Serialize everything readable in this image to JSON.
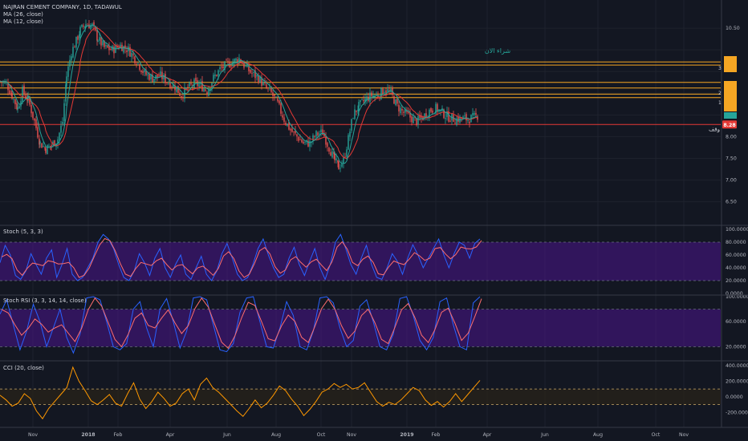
{
  "header": {
    "symbol_line": "NAJRAN CEMENT COMPANY, 1D, TADAWUL",
    "ma1": "MA (26, close)",
    "ma2": "MA (12, close)"
  },
  "annotations": {
    "buy_text": "شراء الان",
    "stop_text": "وقف",
    "price_badge": "8.28",
    "levels": [
      "3",
      "2",
      "1"
    ]
  },
  "colors": {
    "background": "#131722",
    "candle_up": "#26a69a",
    "candle_down": "#ef5350",
    "ma26": "#e53935",
    "ma12": "#26a69a",
    "orange": "#f5a623",
    "red_line": "#e53935",
    "stoch_k": "#2962ff",
    "stoch_d": "#ff6d6d",
    "band": "#4a148c",
    "cci": "#ff9800",
    "green_text": "#26a69a"
  },
  "chart_data": [
    {
      "type": "candlestick",
      "title": "NAJRAN CEMENT COMPANY, 1D, TADAWUL",
      "yticks": [
        6.5,
        7.0,
        7.5,
        8.0,
        8.5,
        9.0,
        9.5,
        10.0,
        10.5
      ],
      "ytick_labels": [
        "6.50",
        "7.00",
        "7.50",
        "8.00",
        "",
        "",
        "",
        "",
        "10.50"
      ],
      "ylim": [
        6.05,
        11.0
      ],
      "last_price": 8.28,
      "xticks": [
        "Nov",
        "2018",
        "Feb",
        "Apr",
        "Jun",
        "Aug",
        "Oct",
        "Nov",
        "2019",
        "Feb",
        "Apr",
        "Jun",
        "Aug",
        "Oct",
        "Nov"
      ],
      "horizontal_lines": [
        {
          "price": 9.72,
          "color": "orange"
        },
        {
          "price": 9.65,
          "color": "orange"
        },
        {
          "price": 9.25,
          "color": "orange"
        },
        {
          "price": 9.12,
          "color": "orange"
        },
        {
          "price": 8.98,
          "color": "orange"
        },
        {
          "price": 8.9,
          "color": "orange"
        },
        {
          "price": 8.28,
          "color": "red"
        }
      ],
      "series": [
        {
          "name": "price",
          "anchors": [
            [
              0,
              9.28
            ],
            [
              8,
              9.22
            ],
            [
              15,
              8.95
            ],
            [
              22,
              8.65
            ],
            [
              28,
              9.05
            ],
            [
              35,
              8.85
            ],
            [
              43,
              8.35
            ],
            [
              50,
              7.85
            ],
            [
              57,
              7.72
            ],
            [
              64,
              7.8
            ],
            [
              72,
              7.95
            ],
            [
              78,
              8.35
            ],
            [
              83,
              9.4
            ],
            [
              89,
              9.95
            ],
            [
              95,
              10.2
            ],
            [
              100,
              10.45
            ],
            [
              107,
              10.6
            ],
            [
              115,
              10.55
            ],
            [
              122,
              10.25
            ],
            [
              130,
              10.05
            ],
            [
              140,
              10.0
            ],
            [
              150,
              10.1
            ],
            [
              160,
              10.0
            ],
            [
              170,
              9.75
            ],
            [
              180,
              9.45
            ],
            [
              190,
              9.35
            ],
            [
              200,
              9.4
            ],
            [
              210,
              9.25
            ],
            [
              218,
              9.15
            ],
            [
              226,
              8.95
            ],
            [
              234,
              9.12
            ],
            [
              242,
              9.22
            ],
            [
              250,
              9.18
            ],
            [
              258,
              9.05
            ],
            [
              266,
              9.35
            ],
            [
              274,
              9.55
            ],
            [
              282,
              9.65
            ],
            [
              290,
              9.72
            ],
            [
              298,
              9.8
            ],
            [
              306,
              9.6
            ],
            [
              314,
              9.45
            ],
            [
              322,
              9.35
            ],
            [
              330,
              9.15
            ],
            [
              338,
              9.0
            ],
            [
              346,
              8.75
            ],
            [
              354,
              8.4
            ],
            [
              362,
              8.15
            ],
            [
              370,
              8.0
            ],
            [
              378,
              7.85
            ],
            [
              386,
              7.85
            ],
            [
              394,
              8.05
            ],
            [
              402,
              8.1
            ],
            [
              410,
              7.75
            ],
            [
              417,
              7.45
            ],
            [
              422,
              7.3
            ],
            [
              428,
              7.45
            ],
            [
              434,
              7.95
            ],
            [
              440,
              8.5
            ],
            [
              447,
              8.7
            ],
            [
              455,
              8.85
            ],
            [
              463,
              8.95
            ],
            [
              471,
              8.95
            ],
            [
              479,
              9.1
            ],
            [
              487,
              9.0
            ],
            [
              495,
              8.7
            ],
            [
              503,
              8.55
            ],
            [
              511,
              8.45
            ],
            [
              519,
              8.35
            ],
            [
              527,
              8.45
            ],
            [
              535,
              8.6
            ],
            [
              543,
              8.65
            ],
            [
              551,
              8.55
            ],
            [
              559,
              8.45
            ],
            [
              567,
              8.4
            ],
            [
              575,
              8.42
            ],
            [
              583,
              8.4
            ],
            [
              591,
              8.45
            ],
            [
              597,
              8.5
            ]
          ]
        },
        {
          "name": "MA (26, close)",
          "type": "line"
        },
        {
          "name": "MA (12, close)",
          "type": "line"
        }
      ]
    },
    {
      "type": "line",
      "title": "Stoch (5, 3, 3)",
      "ylim": [
        0,
        100
      ],
      "yticks": [
        0,
        20,
        40,
        60,
        80,
        100
      ],
      "ytick_labels": [
        "0.0000",
        "20.0000",
        "40.0000",
        "60.0000",
        "80.0000",
        "100.0000"
      ],
      "band": [
        20,
        80
      ],
      "series": [
        {
          "name": "%K",
          "values": [
            48,
            75,
            60,
            28,
            22,
            35,
            62,
            45,
            30,
            55,
            68,
            25,
            45,
            70,
            30,
            20,
            25,
            40,
            55,
            80,
            92,
            85,
            70,
            45,
            25,
            20,
            35,
            62,
            48,
            28,
            55,
            70,
            40,
            25,
            45,
            60,
            30,
            22,
            40,
            58,
            30,
            20,
            35,
            62,
            78,
            55,
            30,
            20,
            25,
            45,
            70,
            85,
            60,
            40,
            25,
            30,
            55,
            72,
            45,
            28,
            50,
            70,
            40,
            22,
            45,
            80,
            92,
            70,
            45,
            30,
            55,
            75,
            45,
            25,
            22,
            40,
            62,
            50,
            30,
            55,
            76,
            60,
            40,
            55,
            70,
            85,
            60,
            40,
            62,
            80,
            75,
            55,
            78,
            85
          ]
        },
        {
          "name": "%D"
        }
      ]
    },
    {
      "type": "line",
      "title": "Stoch RSI (3, 3, 14, 14, close)",
      "ylim": [
        0,
        100
      ],
      "yticks": [
        20,
        60,
        100
      ],
      "ytick_labels": [
        "20.0000",
        "60.0000",
        "100.0000"
      ],
      "band": [
        20,
        80
      ],
      "series": [
        {
          "name": "K",
          "values": [
            72,
            95,
            55,
            15,
            45,
            88,
            60,
            20,
            50,
            80,
            35,
            10,
            40,
            98,
            100,
            95,
            60,
            20,
            15,
            25,
            80,
            92,
            50,
            20,
            80,
            97,
            60,
            18,
            45,
            98,
            100,
            95,
            55,
            15,
            12,
            25,
            75,
            98,
            100,
            60,
            20,
            18,
            50,
            92,
            70,
            20,
            15,
            45,
            98,
            100,
            90,
            50,
            20,
            30,
            85,
            95,
            60,
            20,
            15,
            40,
            97,
            100,
            70,
            30,
            15,
            35,
            92,
            98,
            55,
            20,
            15,
            90,
            100
          ]
        },
        {
          "name": "D"
        }
      ]
    },
    {
      "type": "line",
      "title": "CCI (20, close)",
      "ylim": [
        -360,
        440
      ],
      "yticks": [
        -200,
        0,
        200,
        400
      ],
      "ytick_labels": [
        "-200.0000",
        "0.0000",
        "200.0000",
        "400.0000"
      ],
      "band": [
        -100,
        100
      ],
      "series": [
        {
          "name": "CCI",
          "values": [
            20,
            -40,
            -120,
            -80,
            40,
            -20,
            -180,
            -280,
            -150,
            -60,
            30,
            120,
            380,
            200,
            80,
            -50,
            -100,
            -40,
            30,
            -80,
            -120,
            40,
            180,
            -30,
            -150,
            -60,
            60,
            -20,
            -120,
            -80,
            40,
            100,
            -40,
            160,
            240,
            120,
            60,
            -20,
            -100,
            -180,
            -250,
            -150,
            -40,
            -140,
            -80,
            20,
            140,
            80,
            -30,
            -120,
            -240,
            -160,
            -60,
            60,
            100,
            170,
            120,
            160,
            100,
            120,
            180,
            60,
            -60,
            -120,
            -70,
            -100,
            -40,
            40,
            120,
            80,
            -40,
            -110,
            -60,
            -130,
            -60,
            40,
            -60,
            30,
            120,
            210
          ]
        }
      ]
    }
  ]
}
